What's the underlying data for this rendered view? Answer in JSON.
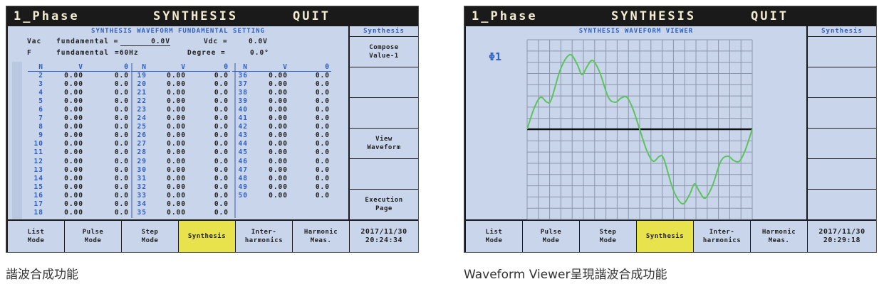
{
  "screens": [
    {
      "top_bar": {
        "phase": "1_Phase",
        "title": "SYNTHESIS",
        "quit": "QUIT"
      },
      "panel_title": "SYNTHESIS WAVEFORM FUNDAMENTAL SETTING",
      "settings": {
        "vac": {
          "name": "Vac",
          "label": "fundamental =",
          "value": "0.0V"
        },
        "vdc": {
          "label": "Vdc =",
          "value": "0.0V"
        },
        "f": {
          "name": "F",
          "label": "fundamental",
          "value": "=60Hz"
        },
        "degree": {
          "label": "Degree =",
          "value": "0.0°"
        }
      },
      "table": {
        "header": [
          "N",
          "V",
          "θ"
        ],
        "groups": [
          [
            [
              "2",
              "0.00",
              "0.0"
            ],
            [
              "3",
              "0.00",
              "0.0"
            ],
            [
              "4",
              "0.00",
              "0.0"
            ],
            [
              "5",
              "0.00",
              "0.0"
            ],
            [
              "6",
              "0.00",
              "0.0"
            ],
            [
              "7",
              "0.00",
              "0.0"
            ],
            [
              "8",
              "0.00",
              "0.0"
            ],
            [
              "9",
              "0.00",
              "0.0"
            ],
            [
              "10",
              "0.00",
              "0.0"
            ],
            [
              "11",
              "0.00",
              "0.0"
            ],
            [
              "12",
              "0.00",
              "0.0"
            ],
            [
              "13",
              "0.00",
              "0.0"
            ],
            [
              "14",
              "0.00",
              "0.0"
            ],
            [
              "15",
              "0.00",
              "0.0"
            ],
            [
              "16",
              "0.00",
              "0.0"
            ],
            [
              "17",
              "0.00",
              "0.0"
            ],
            [
              "18",
              "0.00",
              "0.0"
            ]
          ],
          [
            [
              "19",
              "0.00",
              "0.0"
            ],
            [
              "20",
              "0.00",
              "0.0"
            ],
            [
              "21",
              "0.00",
              "0.0"
            ],
            [
              "22",
              "0.00",
              "0.0"
            ],
            [
              "23",
              "0.00",
              "0.0"
            ],
            [
              "24",
              "0.00",
              "0.0"
            ],
            [
              "25",
              "0.00",
              "0.0"
            ],
            [
              "26",
              "0.00",
              "0.0"
            ],
            [
              "27",
              "0.00",
              "0.0"
            ],
            [
              "28",
              "0.00",
              "0.0"
            ],
            [
              "29",
              "0.00",
              "0.0"
            ],
            [
              "30",
              "0.00",
              "0.0"
            ],
            [
              "31",
              "0.00",
              "0.0"
            ],
            [
              "32",
              "0.00",
              "0.0"
            ],
            [
              "33",
              "0.00",
              "0.0"
            ],
            [
              "34",
              "0.00",
              "0.0"
            ],
            [
              "35",
              "0.00",
              "0.0"
            ]
          ],
          [
            [
              "36",
              "0.00",
              "0.0"
            ],
            [
              "37",
              "0.00",
              "0.0"
            ],
            [
              "38",
              "0.00",
              "0.0"
            ],
            [
              "39",
              "0.00",
              "0.0"
            ],
            [
              "40",
              "0.00",
              "0.0"
            ],
            [
              "41",
              "0.00",
              "0.0"
            ],
            [
              "42",
              "0.00",
              "0.0"
            ],
            [
              "43",
              "0.00",
              "0.0"
            ],
            [
              "44",
              "0.00",
              "0.0"
            ],
            [
              "45",
              "0.00",
              "0.0"
            ],
            [
              "46",
              "0.00",
              "0.0"
            ],
            [
              "47",
              "0.00",
              "0.0"
            ],
            [
              "48",
              "0.00",
              "0.0"
            ],
            [
              "49",
              "0.00",
              "0.0"
            ],
            [
              "50",
              "0.00",
              "0.0"
            ]
          ]
        ]
      },
      "side_menu": {
        "header": "Synthesis",
        "compose": [
          "Compose",
          "Value-1"
        ],
        "view": [
          "View",
          "Waveform"
        ],
        "execution": [
          "Execution",
          "Page"
        ]
      },
      "tabs": [
        [
          "List",
          "Mode"
        ],
        [
          "Pulse",
          "Mode"
        ],
        [
          "Step",
          "Mode"
        ],
        [
          "Synthesis"
        ],
        [
          "Inter-",
          "harmonics"
        ],
        [
          "Harmonic",
          "Meas."
        ]
      ],
      "active_tab": 3,
      "datetime": [
        "2017/11/30",
        "20:24:34"
      ],
      "caption": "諧波合成功能"
    },
    {
      "top_bar": {
        "phase": "1_Phase",
        "title": "SYNTHESIS",
        "quit": "QUIT"
      },
      "panel_title": "SYNTHESIS WAVEFORM VIEWER",
      "trace_label": "Φ1",
      "side_menu": {
        "header": "Synthesis"
      },
      "tabs": [
        [
          "List",
          "Mode"
        ],
        [
          "Pulse",
          "Mode"
        ],
        [
          "Step",
          "Mode"
        ],
        [
          "Synthesis"
        ],
        [
          "Inter-",
          "harmonics"
        ],
        [
          "Harmonic",
          "Meas."
        ]
      ],
      "active_tab": 3,
      "datetime": [
        "2017/11/30",
        "20:29:18"
      ],
      "caption": "Waveform Viewer呈現諧波合成功能"
    }
  ]
}
